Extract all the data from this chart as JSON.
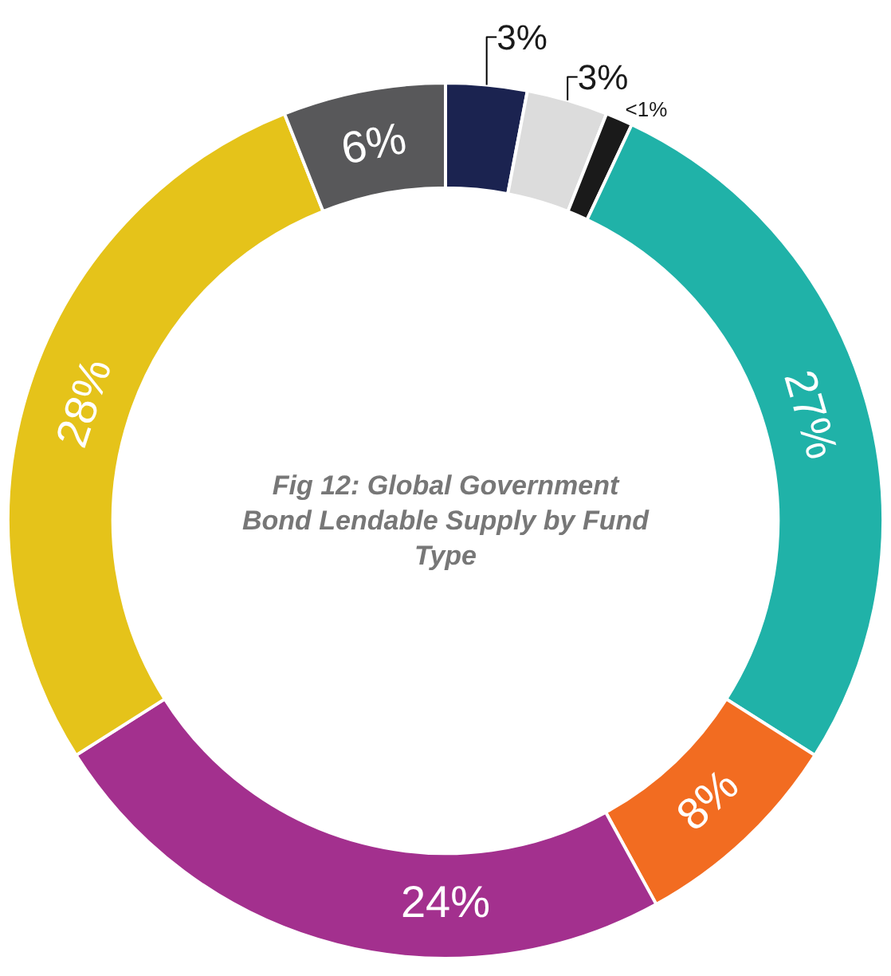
{
  "chart_data": {
    "type": "donut",
    "title": "Fig 12: Global Government Bond Lendable Supply by Fund Type",
    "categories": [
      null,
      null,
      null,
      null,
      null,
      null,
      null,
      null
    ],
    "values": [
      3,
      3,
      1,
      27,
      8,
      24,
      28,
      6
    ],
    "value_labels": [
      "3%",
      "3%",
      "<1%",
      "27%",
      "8%",
      "24%",
      "28%",
      "6%"
    ],
    "colors": [
      "#1b2350",
      "#dcdcdc",
      "#1a1a1a",
      "#20b2a8",
      "#f26c21",
      "#a3308e",
      "#e5c31a",
      "#58585a"
    ],
    "legend": false
  }
}
